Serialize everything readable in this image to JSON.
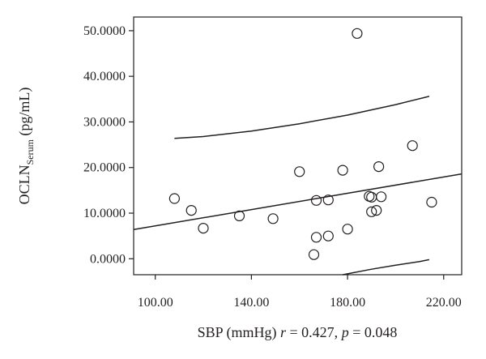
{
  "chart_data": {
    "type": "scatter",
    "xlabel": "SBP (mmHg)",
    "xlabel_stats": {
      "r_symbol": "r",
      "r_text": " = 0.427, ",
      "p_symbol": "p",
      "p_text": " = 0.048"
    },
    "ylabel": {
      "main": "OCLN",
      "subscript": "Serum",
      "unit": " (pg/mL)"
    },
    "xlim": [
      91,
      227.5
    ],
    "ylim": [
      -3.5,
      53
    ],
    "x_ticks": [
      {
        "value": 100,
        "label": "100.00"
      },
      {
        "value": 140,
        "label": "140.00"
      },
      {
        "value": 180,
        "label": "180.00"
      },
      {
        "value": 220,
        "label": "220.00"
      }
    ],
    "y_ticks": [
      {
        "value": 0,
        "label": "0.0000"
      },
      {
        "value": 10,
        "label": "10.0000"
      },
      {
        "value": 20,
        "label": "20.0000"
      },
      {
        "value": 30,
        "label": "30.0000"
      },
      {
        "value": 40,
        "label": "40.0000"
      },
      {
        "value": 50,
        "label": "50.0000"
      }
    ],
    "points": [
      {
        "x": 108,
        "y": 13.2
      },
      {
        "x": 115,
        "y": 10.6
      },
      {
        "x": 120,
        "y": 6.7
      },
      {
        "x": 135,
        "y": 9.4
      },
      {
        "x": 149,
        "y": 8.8
      },
      {
        "x": 160,
        "y": 19.1
      },
      {
        "x": 166,
        "y": 0.9
      },
      {
        "x": 167,
        "y": 12.8
      },
      {
        "x": 167,
        "y": 4.7
      },
      {
        "x": 172,
        "y": 5.0
      },
      {
        "x": 172,
        "y": 12.9
      },
      {
        "x": 178,
        "y": 19.4
      },
      {
        "x": 180,
        "y": 6.5
      },
      {
        "x": 184,
        "y": 49.4
      },
      {
        "x": 189,
        "y": 13.7
      },
      {
        "x": 190,
        "y": 13.5
      },
      {
        "x": 190,
        "y": 10.3
      },
      {
        "x": 192,
        "y": 10.6
      },
      {
        "x": 193,
        "y": 20.2
      },
      {
        "x": 194,
        "y": 13.6
      },
      {
        "x": 207,
        "y": 24.8
      },
      {
        "x": 215,
        "y": 12.4
      }
    ],
    "fit_line": {
      "x": [
        91,
        227.5
      ],
      "y": [
        6.4,
        18.6
      ]
    },
    "upper_band": {
      "x": [
        108,
        120,
        140,
        160,
        180,
        200,
        214
      ],
      "y": [
        26.4,
        26.8,
        28.0,
        29.6,
        31.5,
        33.8,
        35.6
      ]
    },
    "lower_band": {
      "x": [
        178,
        190,
        200,
        210,
        214
      ],
      "y": [
        -3.5,
        -2.3,
        -1.4,
        -0.6,
        -0.2
      ]
    },
    "grid": false,
    "legend": "none"
  }
}
